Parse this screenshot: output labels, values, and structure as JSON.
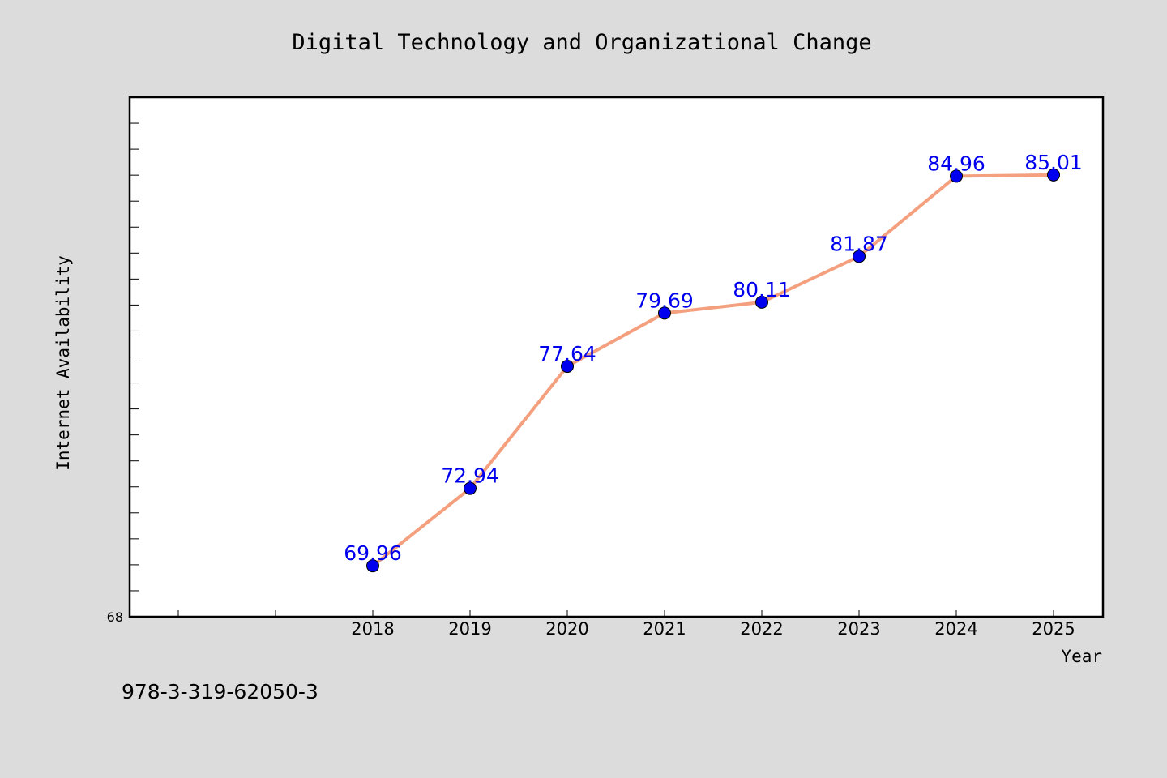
{
  "chart_data": {
    "type": "line",
    "title": "Digital Technology and Organizational Change",
    "xlabel": "Year",
    "ylabel": "Internet Availability",
    "categories": [
      "2018",
      "2019",
      "2020",
      "2021",
      "2022",
      "2023",
      "2024",
      "2025"
    ],
    "series": [
      {
        "values": [
          69.96,
          72.94,
          77.64,
          79.69,
          80.11,
          81.87,
          84.96,
          85.01
        ],
        "labels": [
          "69.96",
          "72.94",
          "77.64",
          "79.69",
          "80.11",
          "81.87",
          "84.96",
          "85.01"
        ]
      }
    ],
    "ytick_labels": [
      "68"
    ],
    "ylim": [
      68,
      88
    ],
    "grid": false,
    "line_color": "#f4a07f",
    "marker_color": "#0000ee",
    "label_color": "#0000ee",
    "background_color": "#dcdcdc",
    "plot_background": "#ffffff"
  },
  "footer": {
    "isbn": "978-3-319-62050-3"
  }
}
